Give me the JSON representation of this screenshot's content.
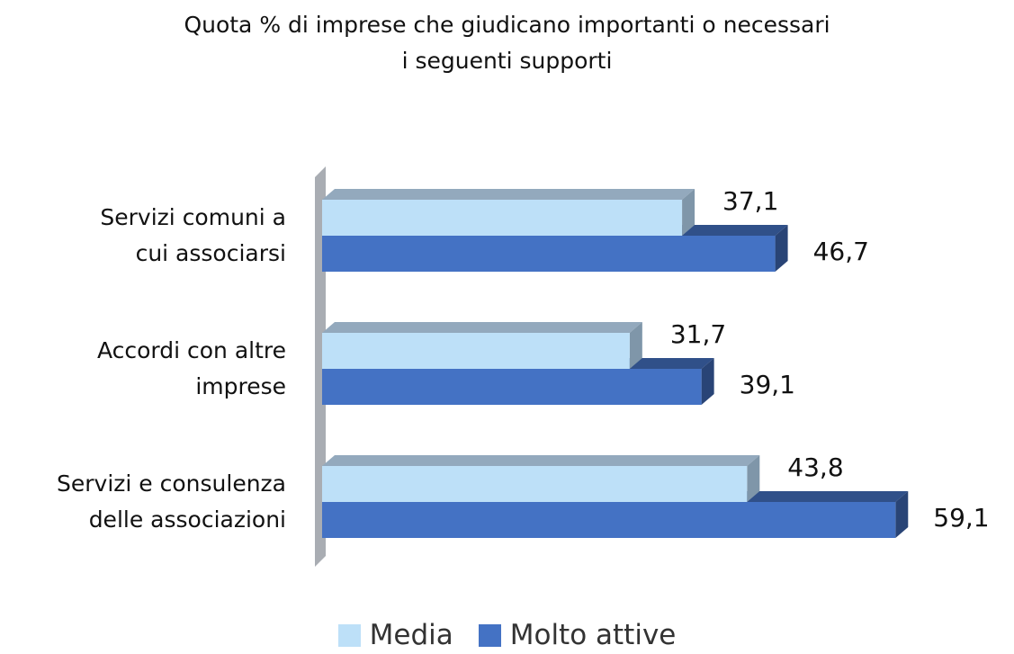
{
  "chart_data": {
    "type": "bar",
    "orientation": "horizontal",
    "title": "Quota % di imprese che giudicano importanti o necessari\ni seguenti supporti",
    "categories": [
      "Servizi comuni a\ncui associarsi",
      "Accordi con altre\nimprese",
      "Servizi e consulenza\ndelle associazioni"
    ],
    "series": [
      {
        "name": "Media",
        "color": "#bde0f8",
        "values": [
          37.1,
          31.7,
          43.8
        ],
        "value_labels": [
          "37,1",
          "31,7",
          "43,8"
        ]
      },
      {
        "name": "Molto attive",
        "color": "#4472c4",
        "values": [
          46.7,
          39.1,
          59.1
        ],
        "value_labels": [
          "46,7",
          "39,1",
          "59,1"
        ]
      }
    ],
    "xlim": [
      0,
      60
    ],
    "legend": "bottom",
    "grid": false
  }
}
